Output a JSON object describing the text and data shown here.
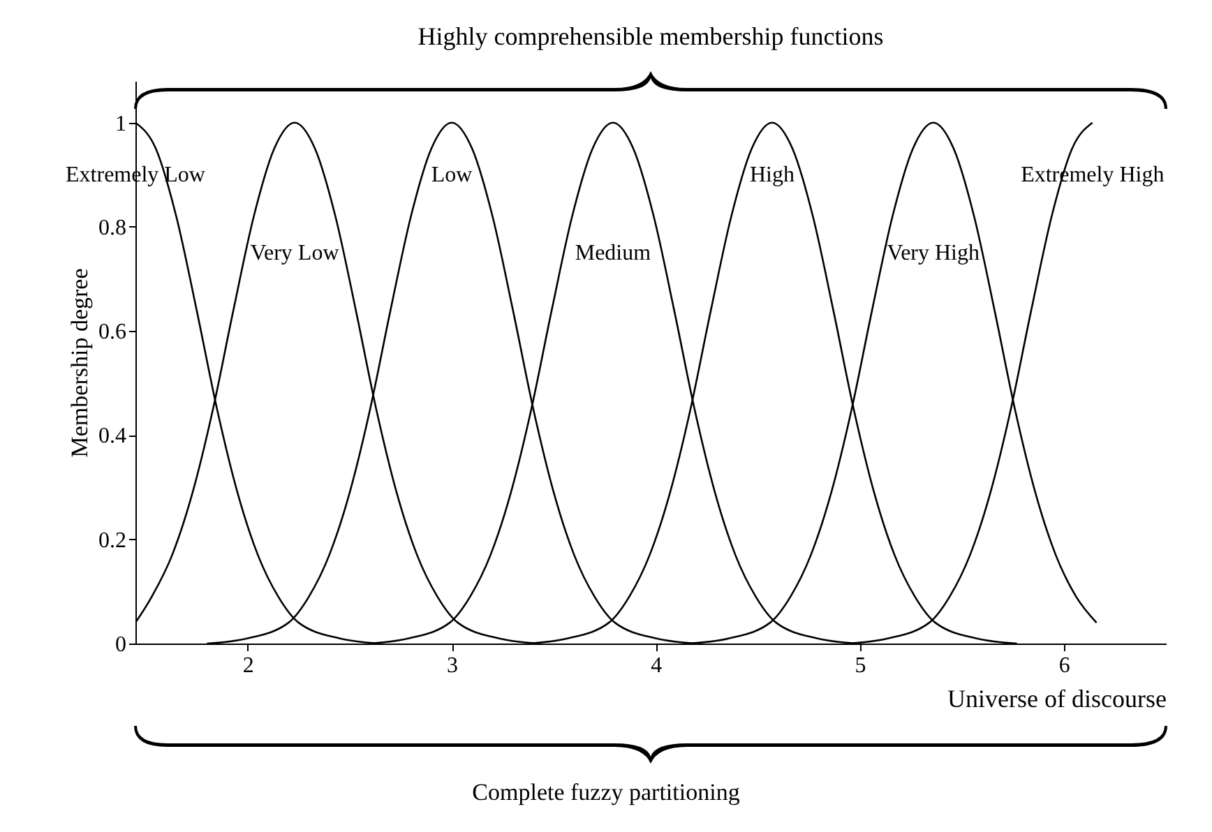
{
  "chart_data": {
    "type": "line",
    "title": "Highly comprehensible membership functions",
    "xlabel": "Universe of discourse",
    "ylabel": "Membership degree",
    "annotations": [
      "Complete fuzzy partitioning"
    ],
    "xlim": [
      1.45,
      6.5
    ],
    "ylim": [
      0,
      1.08
    ],
    "xticks": [
      2,
      3,
      4,
      5,
      6
    ],
    "yticks": [
      0,
      0.2,
      0.4,
      0.6,
      0.8,
      1
    ],
    "legend": false,
    "line_style": "solid",
    "marker": "none",
    "series": [
      {
        "name": "Extremely Low",
        "color": "#000000",
        "x": [
          1.45,
          1.55,
          1.65,
          1.75,
          1.85,
          1.95,
          2.05,
          2.15,
          2.25,
          2.45,
          2.65
        ],
        "values": [
          1,
          0.95,
          0.82,
          0.64,
          0.45,
          0.29,
          0.17,
          0.09,
          0.04,
          0.01,
          0
        ]
      },
      {
        "name": "Very Low",
        "color": "#000000",
        "x": [
          1.45,
          1.53,
          1.63,
          1.73,
          1.83,
          1.93,
          2.03,
          2.13,
          2.23,
          2.33,
          2.43,
          2.53,
          2.63,
          2.73,
          2.83,
          2.93,
          3.03,
          3.23,
          3.43
        ],
        "values": [
          0.04,
          0.09,
          0.17,
          0.29,
          0.45,
          0.64,
          0.82,
          0.95,
          1,
          0.95,
          0.82,
          0.64,
          0.45,
          0.29,
          0.17,
          0.09,
          0.04,
          0.01,
          0
        ]
      },
      {
        "name": "Low",
        "color": "#000000",
        "x": [
          1.8,
          2,
          2.2,
          2.3,
          2.4,
          2.5,
          2.6,
          2.7,
          2.8,
          2.9,
          3,
          3.1,
          3.2,
          3.3,
          3.4,
          3.5,
          3.6,
          3.7,
          3.8,
          4,
          4.2
        ],
        "values": [
          0,
          0.01,
          0.04,
          0.09,
          0.17,
          0.29,
          0.45,
          0.64,
          0.82,
          0.95,
          1,
          0.95,
          0.82,
          0.64,
          0.45,
          0.29,
          0.17,
          0.09,
          0.04,
          0.01,
          0
        ]
      },
      {
        "name": "Medium",
        "color": "#000000",
        "x": [
          2.59,
          2.79,
          2.99,
          3.09,
          3.19,
          3.29,
          3.39,
          3.49,
          3.59,
          3.69,
          3.79,
          3.89,
          3.99,
          4.09,
          4.19,
          4.29,
          4.39,
          4.49,
          4.59,
          4.79,
          4.99
        ],
        "values": [
          0,
          0.01,
          0.04,
          0.09,
          0.17,
          0.29,
          0.45,
          0.64,
          0.82,
          0.95,
          1,
          0.95,
          0.82,
          0.64,
          0.45,
          0.29,
          0.17,
          0.09,
          0.04,
          0.01,
          0
        ]
      },
      {
        "name": "High",
        "color": "#000000",
        "x": [
          3.37,
          3.57,
          3.77,
          3.87,
          3.97,
          4.07,
          4.17,
          4.27,
          4.37,
          4.47,
          4.57,
          4.67,
          4.77,
          4.87,
          4.97,
          5.07,
          5.17,
          5.27,
          5.37,
          5.57,
          5.77
        ],
        "values": [
          0,
          0.01,
          0.04,
          0.09,
          0.17,
          0.29,
          0.45,
          0.64,
          0.82,
          0.95,
          1,
          0.95,
          0.82,
          0.64,
          0.45,
          0.29,
          0.17,
          0.09,
          0.04,
          0.01,
          0
        ]
      },
      {
        "name": "Very High",
        "color": "#000000",
        "x": [
          4.16,
          4.36,
          4.56,
          4.66,
          4.76,
          4.86,
          4.96,
          5.06,
          5.16,
          5.26,
          5.36,
          5.46,
          5.56,
          5.66,
          5.76,
          5.86,
          5.96,
          6.06,
          6.16
        ],
        "values": [
          0,
          0.01,
          0.04,
          0.09,
          0.17,
          0.29,
          0.45,
          0.64,
          0.82,
          0.95,
          1,
          0.95,
          0.82,
          0.64,
          0.45,
          0.29,
          0.17,
          0.09,
          0.04
        ]
      },
      {
        "name": "Extremely High",
        "color": "#000000",
        "x": [
          4.94,
          5.14,
          5.34,
          5.44,
          5.54,
          5.64,
          5.74,
          5.84,
          5.94,
          6.04,
          6.14
        ],
        "values": [
          0,
          0.01,
          0.04,
          0.09,
          0.17,
          0.29,
          0.45,
          0.64,
          0.82,
          0.95,
          1
        ]
      }
    ]
  }
}
